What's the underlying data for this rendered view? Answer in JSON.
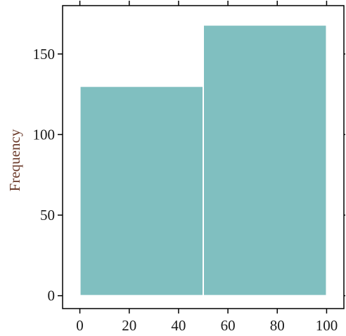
{
  "chart_data": {
    "type": "histogram",
    "title": "",
    "xlabel": "",
    "ylabel": "Frequency",
    "bins": [
      {
        "start": 0,
        "end": 50,
        "count": 130
      },
      {
        "start": 50,
        "end": 100,
        "count": 168
      }
    ],
    "xlim": [
      -7,
      107
    ],
    "ylim": [
      -8,
      180
    ],
    "xticks": [
      0,
      20,
      40,
      60,
      80,
      100
    ],
    "yticks": [
      0,
      50,
      100,
      150
    ],
    "grid": false,
    "legend": "none",
    "bar_color": "#80bfc0",
    "bar_edge_color": "#ffffff"
  }
}
